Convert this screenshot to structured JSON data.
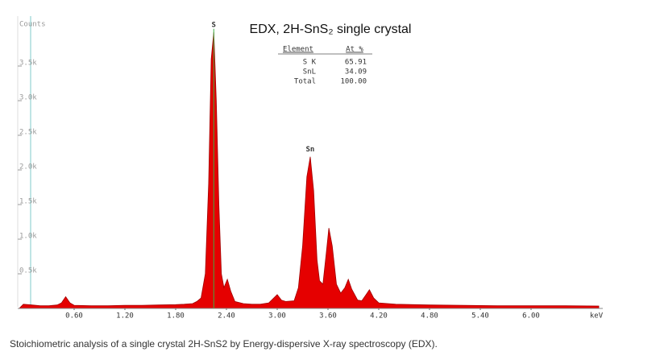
{
  "chart_data": {
    "type": "area",
    "title": "EDX, 2H-SnS₂ single crystal",
    "y_label": "Counts",
    "x_label": "keV",
    "color": "#e50000",
    "xlim": [
      -0.06,
      6.84
    ],
    "ylim": [
      0,
      4200
    ],
    "xticks": [
      {
        "value": 0.6,
        "label": "0.60"
      },
      {
        "value": 1.2,
        "label": "1.20"
      },
      {
        "value": 1.8,
        "label": "1.80"
      },
      {
        "value": 2.4,
        "label": "2.40"
      },
      {
        "value": 3.0,
        "label": "3.00"
      },
      {
        "value": 3.6,
        "label": "3.60"
      },
      {
        "value": 4.2,
        "label": "4.20"
      },
      {
        "value": 4.8,
        "label": "4.80"
      },
      {
        "value": 5.4,
        "label": "5.40"
      },
      {
        "value": 6.0,
        "label": "6.00"
      }
    ],
    "yticks": [
      {
        "value": 500,
        "label": "0.5k"
      },
      {
        "value": 1000,
        "label": "1.0k"
      },
      {
        "value": 1500,
        "label": "1.5k"
      },
      {
        "value": 2000,
        "label": "2.0k"
      },
      {
        "value": 2500,
        "label": "2.5k"
      },
      {
        "value": 3000,
        "label": "3.0k"
      },
      {
        "value": 3500,
        "label": "3.5k"
      }
    ],
    "x": [
      -0.05,
      0.0,
      0.1,
      0.2,
      0.3,
      0.4,
      0.45,
      0.5,
      0.55,
      0.6,
      0.8,
      1.0,
      1.2,
      1.4,
      1.6,
      1.8,
      1.9,
      2.0,
      2.05,
      2.1,
      2.15,
      2.19,
      2.22,
      2.25,
      2.28,
      2.31,
      2.34,
      2.37,
      2.41,
      2.45,
      2.5,
      2.6,
      2.7,
      2.8,
      2.9,
      3.0,
      3.05,
      3.1,
      3.2,
      3.25,
      3.3,
      3.35,
      3.39,
      3.43,
      3.47,
      3.5,
      3.54,
      3.58,
      3.61,
      3.65,
      3.7,
      3.75,
      3.8,
      3.84,
      3.88,
      3.95,
      4.0,
      4.05,
      4.09,
      4.14,
      4.2,
      4.4,
      4.8,
      5.2,
      5.6,
      6.0,
      6.4,
      6.8
    ],
    "values": [
      0,
      60,
      50,
      40,
      40,
      50,
      80,
      170,
      80,
      45,
      40,
      40,
      45,
      45,
      50,
      55,
      60,
      70,
      100,
      150,
      500,
      1800,
      3600,
      3990,
      3000,
      1500,
      500,
      300,
      420,
      250,
      100,
      70,
      60,
      60,
      80,
      200,
      120,
      100,
      110,
      300,
      900,
      1900,
      2190,
      1700,
      700,
      400,
      350,
      800,
      1160,
      900,
      350,
      220,
      300,
      420,
      280,
      120,
      110,
      200,
      270,
      150,
      80,
      60,
      50,
      45,
      40,
      40,
      40,
      35
    ],
    "peak_labels": [
      {
        "text": "S",
        "x": 2.25,
        "y": 3990
      },
      {
        "text": "Sn",
        "x": 3.39,
        "y": 2190
      }
    ],
    "table": {
      "header": [
        "Element",
        "At %"
      ],
      "rows": [
        [
          "S K",
          "65.91"
        ],
        [
          "SnL",
          "34.09"
        ],
        [
          "Total",
          "100.00"
        ]
      ]
    }
  },
  "caption": "Stoichiometric analysis of a single crystal 2H-SnS2 by Energy-dispersive X-ray spectroscopy (EDX)."
}
